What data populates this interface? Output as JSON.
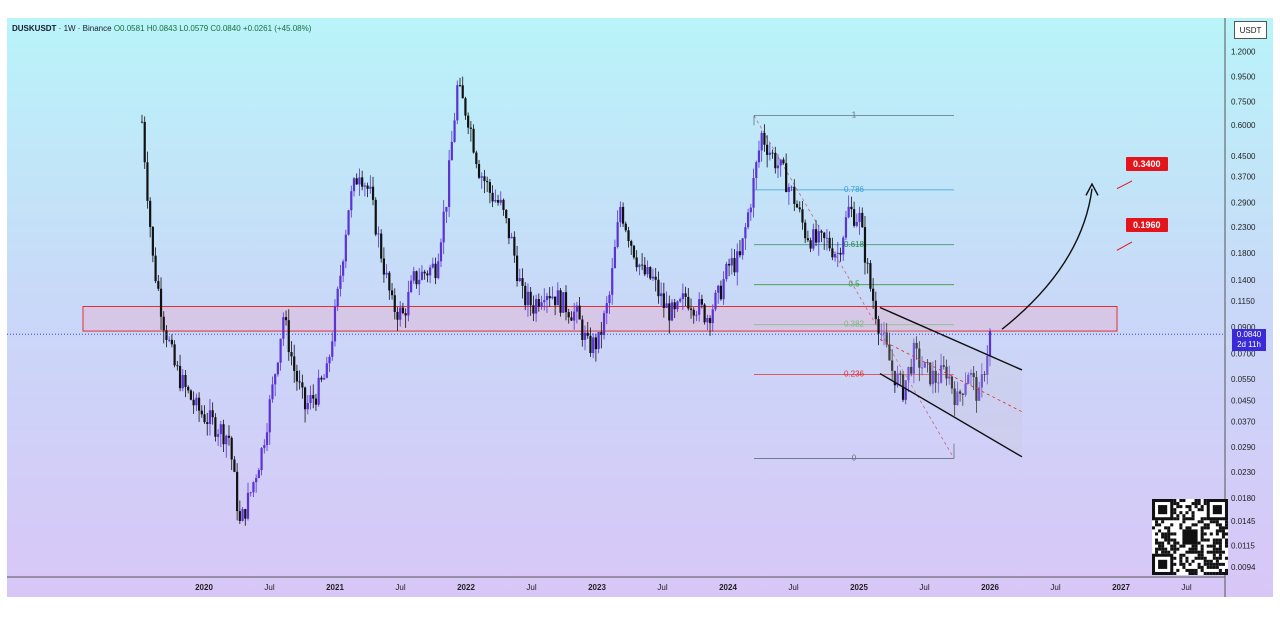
{
  "legend": {
    "symbol": "DUSKUSDT",
    "timeframe": "1W",
    "exchange": "Binance",
    "open": "O0.0581",
    "high": "H0.0843",
    "low": "L0.0579",
    "close": "C0.0840",
    "change": "+0.0261 (+45.08%)"
  },
  "currency": "USDT",
  "current_price": "0.0840",
  "countdown": "2d 11h",
  "targets": [
    "0.3400",
    "0.1960"
  ],
  "fib_levels": [
    {
      "label": "1",
      "value": 0.6573,
      "color": "#607080"
    },
    {
      "label": "0.786",
      "value": 0.3264,
      "color": "#3aa0d8"
    },
    {
      "label": "0.618",
      "value": 0.1948,
      "color": "#2e8b57"
    },
    {
      "label": "0.5",
      "value": 0.1338,
      "color": "#3a9a3a"
    },
    {
      "label": "0.382",
      "value": 0.0918,
      "color": "#7ab87a"
    },
    {
      "label": "0.236",
      "value": 0.0574,
      "color": "#e03030"
    },
    {
      "label": "0",
      "value": 0.0261,
      "color": "#607080"
    }
  ],
  "chart_data": {
    "type": "line",
    "title": "",
    "xlabel": "",
    "ylabel": "",
    "y_scale": "log",
    "ylim": [
      0.0088,
      1.3
    ],
    "y_ticks": [
      "1.2000",
      "0.9500",
      "0.7500",
      "0.6000",
      "0.4500",
      "0.3700",
      "0.2900",
      "0.2300",
      "0.1800",
      "0.1400",
      "0.1150",
      "0.0900",
      "0.0700",
      "0.0550",
      "0.0450",
      "0.0370",
      "0.0290",
      "0.0230",
      "0.0180",
      "0.0145",
      "0.0115",
      "0.0094"
    ],
    "x_ticks": [
      "2020",
      "Jul",
      "2021",
      "Jul",
      "2022",
      "Jul",
      "2023",
      "Jul",
      "2024",
      "Jul",
      "2025",
      "Jul",
      "2026",
      "Jul",
      "2027",
      "Jul"
    ],
    "grid": false,
    "resistance_zone": [
      0.0865,
      0.109
    ],
    "series": [
      {
        "x": [
          "2019-06",
          "2019-07",
          "2019-08",
          "2019-09",
          "2019-10",
          "2019-11",
          "2019-12",
          "2020-01",
          "2020-02",
          "2020-03",
          "2020-04",
          "2020-05",
          "2020-06",
          "2020-07",
          "2020-08",
          "2020-09",
          "2020-10",
          "2020-11",
          "2020-12",
          "2021-01",
          "2021-02",
          "2021-03",
          "2021-04",
          "2021-05",
          "2021-06",
          "2021-07",
          "2021-08",
          "2021-09",
          "2021-10",
          "2021-11",
          "2021-12",
          "2022-01",
          "2022-02",
          "2022-03",
          "2022-04",
          "2022-05",
          "2022-06",
          "2022-07",
          "2022-08",
          "2022-09",
          "2022-10",
          "2022-11",
          "2022-12",
          "2023-01",
          "2023-02",
          "2023-03",
          "2023-04",
          "2023-05",
          "2023-06",
          "2023-07",
          "2023-08",
          "2023-09",
          "2023-10",
          "2023-11",
          "2023-12",
          "2024-01",
          "2024-02",
          "2024-03",
          "2024-04",
          "2024-05",
          "2024-06",
          "2024-07",
          "2024-08",
          "2024-09",
          "2024-10",
          "2024-11",
          "2024-12",
          "2025-01",
          "2025-02",
          "2025-03",
          "2025-04",
          "2025-05",
          "2025-06",
          "2025-07",
          "2025-08",
          "2025-09",
          "2025-10",
          "2025-11",
          "2025-12"
        ],
        "values": [
          0.62,
          0.17,
          0.095,
          0.062,
          0.05,
          0.042,
          0.038,
          0.035,
          0.032,
          0.014,
          0.019,
          0.028,
          0.05,
          0.1,
          0.06,
          0.042,
          0.048,
          0.058,
          0.12,
          0.28,
          0.4,
          0.31,
          0.18,
          0.11,
          0.1,
          0.14,
          0.15,
          0.16,
          0.3,
          0.85,
          0.65,
          0.4,
          0.32,
          0.28,
          0.2,
          0.12,
          0.11,
          0.13,
          0.12,
          0.11,
          0.1,
          0.075,
          0.078,
          0.12,
          0.28,
          0.2,
          0.15,
          0.14,
          0.11,
          0.1,
          0.12,
          0.11,
          0.1,
          0.12,
          0.16,
          0.17,
          0.3,
          0.55,
          0.45,
          0.38,
          0.3,
          0.22,
          0.2,
          0.2,
          0.18,
          0.27,
          0.25,
          0.13,
          0.085,
          0.06,
          0.05,
          0.07,
          0.06,
          0.055,
          0.06,
          0.045,
          0.06,
          0.046,
          0.084
        ]
      }
    ]
  }
}
